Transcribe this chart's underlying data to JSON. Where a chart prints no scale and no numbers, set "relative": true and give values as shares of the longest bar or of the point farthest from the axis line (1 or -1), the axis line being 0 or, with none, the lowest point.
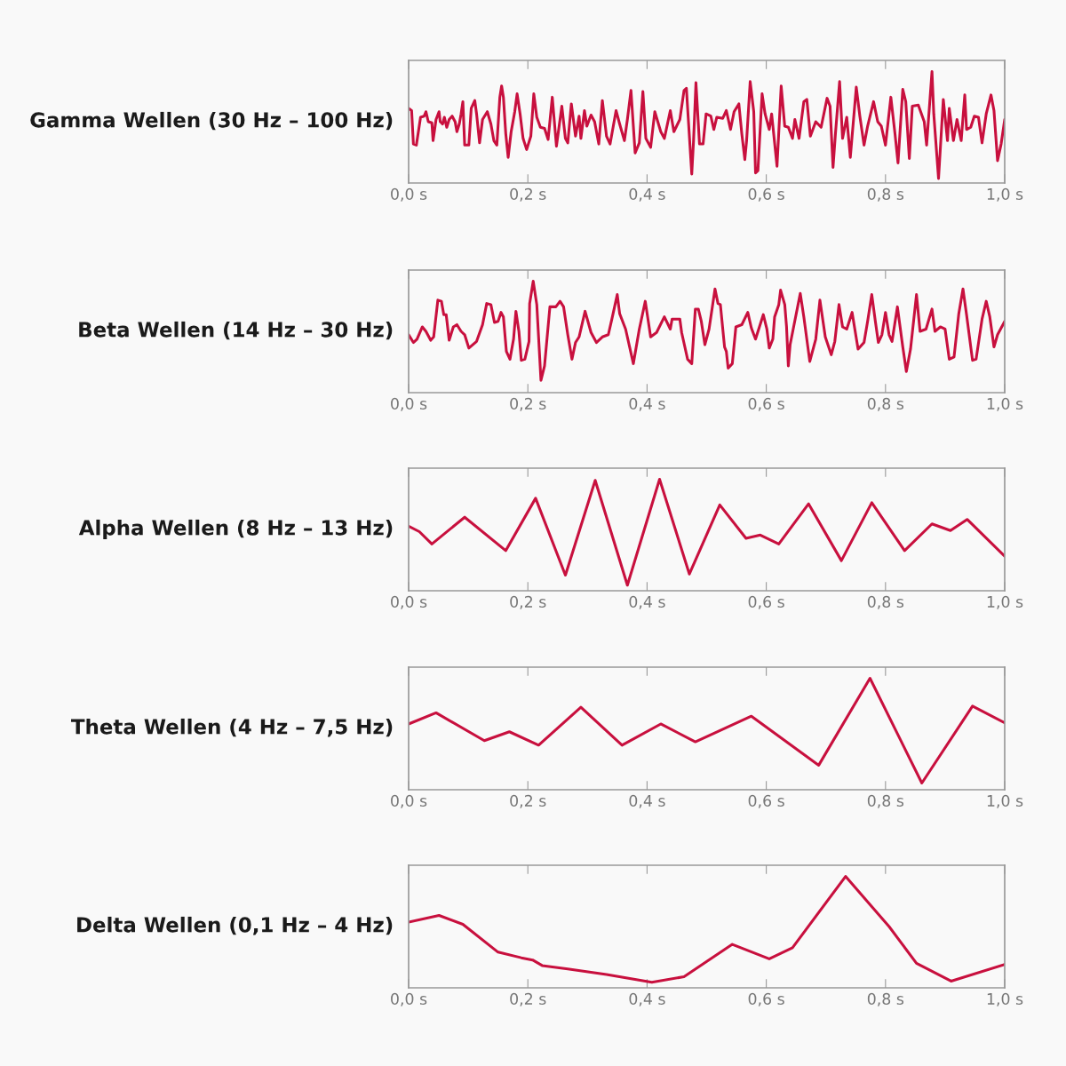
{
  "chart_data": [
    {
      "type": "line",
      "title": "Gamma Wellen (30 Hz – 100 Hz)",
      "relative": true,
      "xlim": [
        0,
        1
      ],
      "xticks": [
        {
          "value": 0,
          "label": "0,0 s"
        },
        {
          "value": 0.2,
          "label": "0,2 s"
        },
        {
          "value": 0.4,
          "label": "0,4 s"
        },
        {
          "value": 0.6,
          "label": "0,6 s"
        },
        {
          "value": 0.8,
          "label": "0,8 s"
        },
        {
          "value": 1,
          "label": "1,0 s"
        }
      ],
      "tick_labels": "x",
      "series": [
        {
          "color": "#c8103e",
          "x": [
            0.0,
            0.005,
            0.008,
            0.013,
            0.02,
            0.026,
            0.029,
            0.033,
            0.039,
            0.041,
            0.046,
            0.051,
            0.053,
            0.057,
            0.06,
            0.064,
            0.068,
            0.073,
            0.078,
            0.081,
            0.085,
            0.088,
            0.091,
            0.094,
            0.101,
            0.105,
            0.111,
            0.114,
            0.119,
            0.124,
            0.132,
            0.138,
            0.143,
            0.148,
            0.153,
            0.156,
            0.159,
            0.163,
            0.167,
            0.172,
            0.178,
            0.182,
            0.187,
            0.192,
            0.198,
            0.205,
            0.21,
            0.215,
            0.221,
            0.228,
            0.234,
            0.241,
            0.248,
            0.257,
            0.263,
            0.267,
            0.273,
            0.28,
            0.286,
            0.289,
            0.295,
            0.299,
            0.306,
            0.312,
            0.319,
            0.325,
            0.332,
            0.338,
            0.348,
            0.354,
            0.362,
            0.367,
            0.373,
            0.38,
            0.387,
            0.393,
            0.398,
            0.406,
            0.413,
            0.423,
            0.429,
            0.439,
            0.445,
            0.455,
            0.462,
            0.466,
            0.469,
            0.475,
            0.478,
            0.482,
            0.488,
            0.494,
            0.499,
            0.507,
            0.512,
            0.517,
            0.527,
            0.533,
            0.54,
            0.546,
            0.554,
            0.559,
            0.564,
            0.567,
            0.573,
            0.579,
            0.582,
            0.586,
            0.593,
            0.598,
            0.605,
            0.609,
            0.618,
            0.625,
            0.631,
            0.637,
            0.644,
            0.648,
            0.655,
            0.663,
            0.668,
            0.674,
            0.683,
            0.692,
            0.702,
            0.707,
            0.712,
            0.716,
            0.723,
            0.728,
            0.735,
            0.741,
            0.751,
            0.757,
            0.764,
            0.77,
            0.78,
            0.787,
            0.793,
            0.8,
            0.809,
            0.816,
            0.821,
            0.829,
            0.834,
            0.84,
            0.845,
            0.855,
            0.865,
            0.869,
            0.878,
            0.881,
            0.889,
            0.897,
            0.904,
            0.907,
            0.914,
            0.92,
            0.927,
            0.933,
            0.936,
            0.943,
            0.949,
            0.956,
            0.962,
            0.969,
            0.977,
            0.982,
            0.988,
            0.994,
            1.0
          ],
          "values": [
            0.67,
            0.65,
            0.35,
            0.34,
            0.59,
            0.6,
            0.64,
            0.55,
            0.54,
            0.38,
            0.57,
            0.64,
            0.55,
            0.53,
            0.59,
            0.5,
            0.57,
            0.6,
            0.55,
            0.46,
            0.53,
            0.62,
            0.73,
            0.34,
            0.34,
            0.67,
            0.74,
            0.62,
            0.36,
            0.57,
            0.64,
            0.53,
            0.38,
            0.34,
            0.77,
            0.87,
            0.77,
            0.44,
            0.23,
            0.46,
            0.64,
            0.8,
            0.62,
            0.4,
            0.3,
            0.42,
            0.8,
            0.59,
            0.5,
            0.49,
            0.39,
            0.77,
            0.33,
            0.69,
            0.4,
            0.36,
            0.71,
            0.42,
            0.6,
            0.4,
            0.65,
            0.51,
            0.61,
            0.55,
            0.35,
            0.74,
            0.42,
            0.35,
            0.65,
            0.53,
            0.38,
            0.57,
            0.83,
            0.27,
            0.36,
            0.82,
            0.4,
            0.32,
            0.64,
            0.46,
            0.4,
            0.65,
            0.46,
            0.57,
            0.83,
            0.85,
            0.59,
            0.08,
            0.38,
            0.9,
            0.35,
            0.35,
            0.62,
            0.6,
            0.48,
            0.59,
            0.58,
            0.65,
            0.48,
            0.64,
            0.71,
            0.44,
            0.21,
            0.38,
            0.91,
            0.64,
            0.09,
            0.11,
            0.8,
            0.62,
            0.48,
            0.62,
            0.15,
            0.87,
            0.51,
            0.5,
            0.4,
            0.57,
            0.4,
            0.73,
            0.75,
            0.42,
            0.55,
            0.5,
            0.76,
            0.69,
            0.14,
            0.44,
            0.91,
            0.4,
            0.59,
            0.23,
            0.86,
            0.6,
            0.34,
            0.51,
            0.73,
            0.55,
            0.51,
            0.34,
            0.77,
            0.44,
            0.18,
            0.84,
            0.73,
            0.22,
            0.69,
            0.7,
            0.55,
            0.34,
            1.0,
            0.62,
            0.04,
            0.75,
            0.38,
            0.67,
            0.38,
            0.57,
            0.38,
            0.79,
            0.48,
            0.5,
            0.6,
            0.59,
            0.36,
            0.62,
            0.79,
            0.65,
            0.2,
            0.35,
            0.57
          ]
        }
      ]
    },
    {
      "type": "line",
      "title": "Beta Wellen (14 Hz – 30 Hz)",
      "relative": true,
      "xlim": [
        0,
        1
      ],
      "xticks": [
        {
          "value": 0,
          "label": "0,0 s"
        },
        {
          "value": 0.2,
          "label": "0,2 s"
        },
        {
          "value": 0.4,
          "label": "0,4 s"
        },
        {
          "value": 0.6,
          "label": "0,6 s"
        },
        {
          "value": 0.8,
          "label": "0,8 s"
        },
        {
          "value": 1,
          "label": "1,0 s"
        }
      ],
      "tick_labels": "x",
      "series": [
        {
          "color": "#c8103e",
          "x": [
            0.0,
            0.008,
            0.014,
            0.023,
            0.029,
            0.037,
            0.042,
            0.049,
            0.055,
            0.059,
            0.063,
            0.068,
            0.075,
            0.081,
            0.088,
            0.094,
            0.101,
            0.114,
            0.124,
            0.131,
            0.138,
            0.144,
            0.15,
            0.155,
            0.159,
            0.164,
            0.17,
            0.176,
            0.18,
            0.185,
            0.189,
            0.195,
            0.202,
            0.203,
            0.209,
            0.215,
            0.222,
            0.228,
            0.237,
            0.247,
            0.254,
            0.26,
            0.267,
            0.274,
            0.28,
            0.286,
            0.296,
            0.306,
            0.315,
            0.325,
            0.335,
            0.341,
            0.35,
            0.354,
            0.364,
            0.377,
            0.387,
            0.397,
            0.406,
            0.416,
            0.429,
            0.439,
            0.442,
            0.455,
            0.458,
            0.468,
            0.475,
            0.481,
            0.486,
            0.491,
            0.497,
            0.504,
            0.514,
            0.519,
            0.523,
            0.53,
            0.533,
            0.536,
            0.543,
            0.549,
            0.559,
            0.569,
            0.575,
            0.582,
            0.595,
            0.601,
            0.605,
            0.611,
            0.614,
            0.621,
            0.624,
            0.631,
            0.634,
            0.637,
            0.64,
            0.647,
            0.657,
            0.663,
            0.673,
            0.683,
            0.69,
            0.699,
            0.709,
            0.715,
            0.722,
            0.728,
            0.735,
            0.744,
            0.754,
            0.764,
            0.77,
            0.777,
            0.783,
            0.788,
            0.794,
            0.8,
            0.806,
            0.811,
            0.82,
            0.829,
            0.835,
            0.842,
            0.852,
            0.858,
            0.868,
            0.878,
            0.883,
            0.892,
            0.9,
            0.907,
            0.915,
            0.923,
            0.93,
            0.936,
            0.946,
            0.952,
            0.962,
            0.969,
            0.975,
            0.982,
            0.988,
            1.0
          ],
          "values": [
            0.52,
            0.45,
            0.48,
            0.59,
            0.55,
            0.47,
            0.5,
            0.83,
            0.82,
            0.7,
            0.7,
            0.47,
            0.59,
            0.61,
            0.55,
            0.52,
            0.4,
            0.46,
            0.61,
            0.8,
            0.79,
            0.63,
            0.64,
            0.72,
            0.68,
            0.37,
            0.3,
            0.48,
            0.73,
            0.55,
            0.29,
            0.3,
            0.46,
            0.8,
            1.0,
            0.79,
            0.11,
            0.24,
            0.77,
            0.77,
            0.82,
            0.77,
            0.52,
            0.3,
            0.45,
            0.5,
            0.73,
            0.54,
            0.45,
            0.5,
            0.52,
            0.66,
            0.88,
            0.71,
            0.57,
            0.26,
            0.57,
            0.82,
            0.5,
            0.54,
            0.68,
            0.57,
            0.66,
            0.66,
            0.54,
            0.3,
            0.26,
            0.75,
            0.75,
            0.64,
            0.43,
            0.57,
            0.93,
            0.8,
            0.79,
            0.41,
            0.37,
            0.22,
            0.26,
            0.59,
            0.61,
            0.72,
            0.58,
            0.48,
            0.7,
            0.57,
            0.4,
            0.48,
            0.68,
            0.79,
            0.92,
            0.79,
            0.59,
            0.24,
            0.43,
            0.62,
            0.89,
            0.68,
            0.28,
            0.48,
            0.83,
            0.5,
            0.34,
            0.46,
            0.79,
            0.59,
            0.57,
            0.72,
            0.39,
            0.45,
            0.64,
            0.88,
            0.64,
            0.45,
            0.52,
            0.72,
            0.52,
            0.46,
            0.77,
            0.41,
            0.19,
            0.39,
            0.88,
            0.55,
            0.57,
            0.75,
            0.55,
            0.59,
            0.57,
            0.3,
            0.32,
            0.71,
            0.93,
            0.7,
            0.29,
            0.3,
            0.66,
            0.82,
            0.68,
            0.41,
            0.52,
            0.64
          ]
        }
      ]
    },
    {
      "type": "line",
      "title": "Alpha Wellen (8 Hz – 13 Hz)",
      "relative": true,
      "xlim": [
        0,
        1
      ],
      "xticks": [
        {
          "value": 0,
          "label": "0,0 s"
        },
        {
          "value": 0.2,
          "label": "0,2 s"
        },
        {
          "value": 0.4,
          "label": "0,4 s"
        },
        {
          "value": 0.6,
          "label": "0,6 s"
        },
        {
          "value": 0.8,
          "label": "0,8 s"
        },
        {
          "value": 1,
          "label": "1,0 s"
        }
      ],
      "tick_labels": "x",
      "series": [
        {
          "color": "#c8103e",
          "x": [
            0.0,
            0.018,
            0.039,
            0.094,
            0.163,
            0.213,
            0.263,
            0.313,
            0.367,
            0.421,
            0.471,
            0.522,
            0.566,
            0.59,
            0.621,
            0.671,
            0.726,
            0.777,
            0.832,
            0.878,
            0.909,
            0.937,
            1.0
          ],
          "values": [
            0.58,
            0.53,
            0.42,
            0.66,
            0.36,
            0.83,
            0.14,
            0.99,
            0.05,
            1.0,
            0.15,
            0.77,
            0.47,
            0.5,
            0.42,
            0.78,
            0.27,
            0.79,
            0.36,
            0.6,
            0.54,
            0.64,
            0.31
          ]
        }
      ]
    },
    {
      "type": "line",
      "title": "Theta Wellen (4 Hz – 7,5 Hz)",
      "relative": true,
      "xlim": [
        0,
        1
      ],
      "xticks": [
        {
          "value": 0,
          "label": "0,0 s"
        },
        {
          "value": 0.2,
          "label": "0,2 s"
        },
        {
          "value": 0.4,
          "label": "0,4 s"
        },
        {
          "value": 0.6,
          "label": "0,6 s"
        },
        {
          "value": 0.8,
          "label": "0,8 s"
        },
        {
          "value": 1,
          "label": "1,0 s"
        }
      ],
      "tick_labels": "x",
      "series": [
        {
          "color": "#c8103e",
          "x": [
            0.0,
            0.046,
            0.127,
            0.169,
            0.218,
            0.289,
            0.358,
            0.423,
            0.481,
            0.575,
            0.688,
            0.774,
            0.861,
            0.946,
            1.0
          ],
          "values": [
            0.59,
            0.69,
            0.44,
            0.52,
            0.4,
            0.74,
            0.4,
            0.59,
            0.43,
            0.66,
            0.22,
            1.0,
            0.06,
            0.75,
            0.6
          ]
        }
      ]
    },
    {
      "type": "line",
      "title": "Delta Wellen (0,1 Hz – 4 Hz)",
      "relative": true,
      "xlim": [
        0,
        1
      ],
      "xticks": [
        {
          "value": 0,
          "label": "0,0 s"
        },
        {
          "value": 0.2,
          "label": "0,2 s"
        },
        {
          "value": 0.4,
          "label": "0,4 s"
        },
        {
          "value": 0.6,
          "label": "0,6 s"
        },
        {
          "value": 0.8,
          "label": "0,8 s"
        },
        {
          "value": 1,
          "label": "1,0 s"
        }
      ],
      "tick_labels": "x",
      "series": [
        {
          "color": "#c8103e",
          "x": [
            0.0,
            0.051,
            0.091,
            0.15,
            0.189,
            0.208,
            0.224,
            0.267,
            0.332,
            0.408,
            0.462,
            0.543,
            0.605,
            0.644,
            0.733,
            0.806,
            0.852,
            0.91,
            1.0
          ],
          "values": [
            0.59,
            0.65,
            0.57,
            0.32,
            0.27,
            0.25,
            0.2,
            0.17,
            0.12,
            0.05,
            0.1,
            0.39,
            0.26,
            0.36,
            1.0,
            0.55,
            0.22,
            0.06,
            0.21
          ]
        }
      ]
    }
  ]
}
